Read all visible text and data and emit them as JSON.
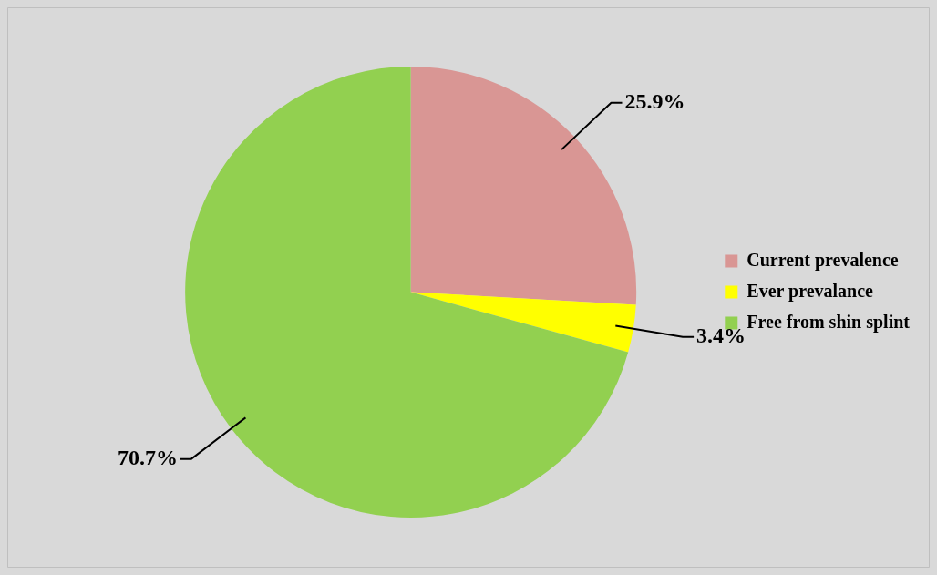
{
  "chart_data": {
    "type": "pie",
    "categories": [
      "Current prevalence",
      "Ever prevalance",
      "Free from shin splint"
    ],
    "values": [
      25.9,
      3.4,
      70.7
    ],
    "colors": [
      "#d99694",
      "#ffff00",
      "#92d050"
    ],
    "value_labels": [
      "25.9%",
      "3.4%",
      "70.7%"
    ],
    "legend": "right"
  }
}
